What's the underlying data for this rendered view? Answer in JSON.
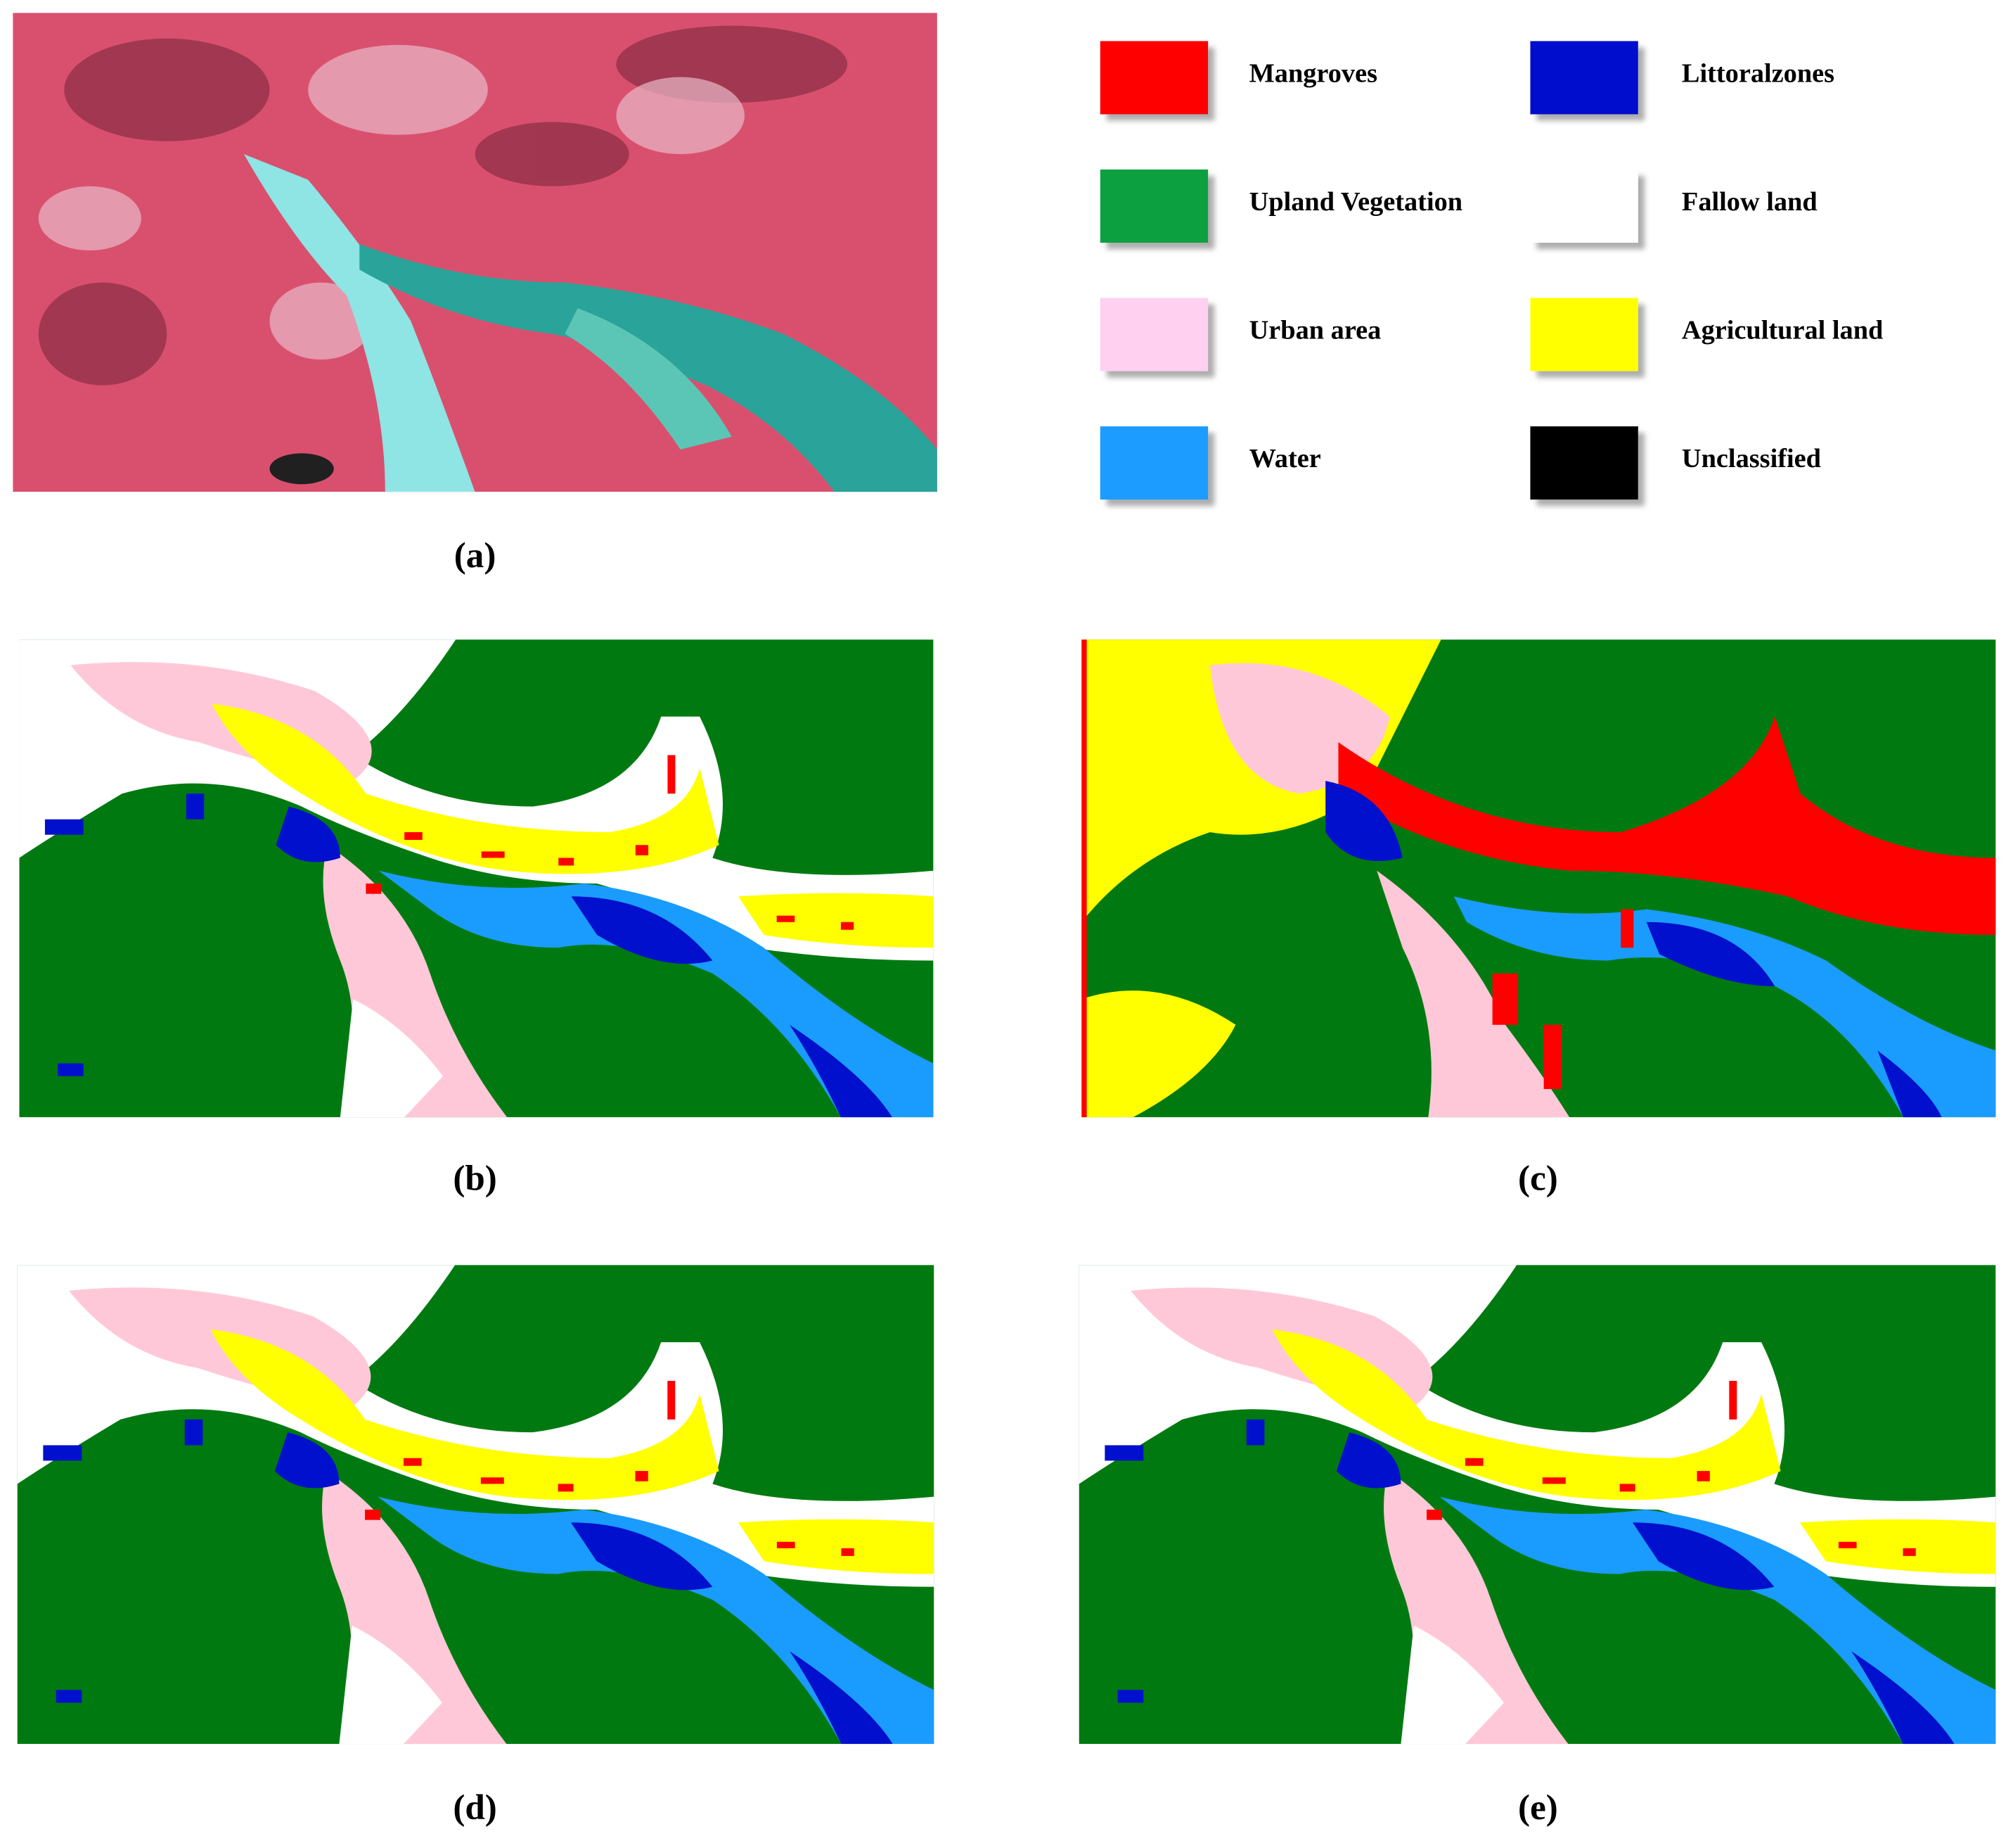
{
  "legend": [
    {
      "label": "Mangroves",
      "color": "#ff0000"
    },
    {
      "label": "Littoralzones",
      "color": "#0010cc"
    },
    {
      "label": "Upland Vegetation",
      "color": "#0aa040"
    },
    {
      "label": "Fallow land",
      "color": "#ffffff"
    },
    {
      "label": "Urban area",
      "color": "#ffd0f0"
    },
    {
      "label": "Agricultural land",
      "color": "#ffff00"
    },
    {
      "label": "Water",
      "color": "#1a9cff"
    },
    {
      "label": "Unclassified",
      "color": "#000000"
    }
  ],
  "panels": [
    {
      "label": "(a)"
    },
    {
      "label": "(b)"
    },
    {
      "label": "(c)"
    },
    {
      "label": "(d)"
    },
    {
      "label": "(e)"
    }
  ]
}
